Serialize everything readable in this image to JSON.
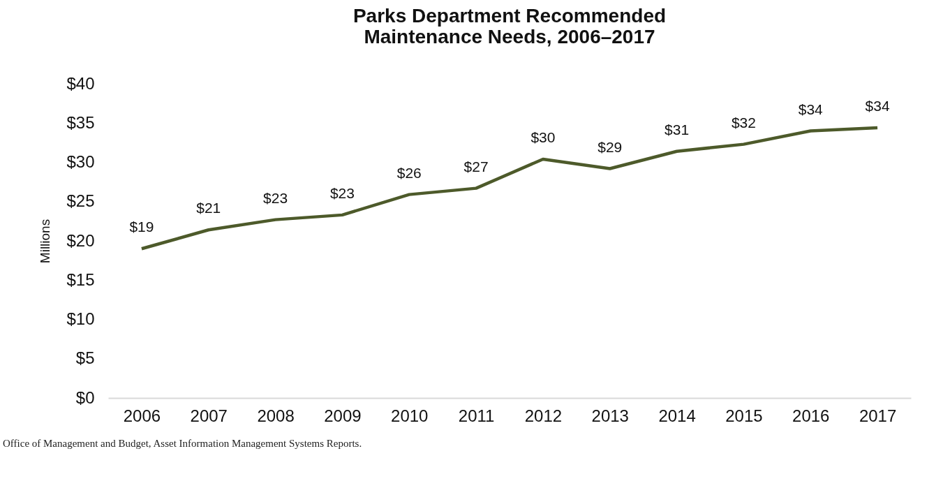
{
  "chart_data": {
    "type": "line",
    "title": "Parks Department Recommended\nMaintenance Needs, 2006–2017",
    "ylabel": "Millions",
    "categories": [
      "2006",
      "2007",
      "2008",
      "2009",
      "2010",
      "2011",
      "2012",
      "2013",
      "2014",
      "2015",
      "2016",
      "2017"
    ],
    "series": [
      {
        "color": "#4d5a2a",
        "values": [
          19.0,
          21.4,
          22.7,
          23.3,
          25.9,
          26.7,
          30.4,
          29.2,
          31.4,
          32.3,
          34.0,
          34.4
        ],
        "value_labels": [
          "$19",
          "$21",
          "$23",
          "$23",
          "$26",
          "$27",
          "$30",
          "$29",
          "$31",
          "$32",
          "$34",
          "$34"
        ]
      }
    ],
    "ylim": [
      0,
      40
    ],
    "yticks": [
      {
        "value": 0,
        "label": "$0"
      },
      {
        "value": 5,
        "label": "$5"
      },
      {
        "value": 10,
        "label": "$10"
      },
      {
        "value": 15,
        "label": "$15"
      },
      {
        "value": 20,
        "label": "$20"
      },
      {
        "value": 25,
        "label": "$25"
      },
      {
        "value": 30,
        "label": "$30"
      },
      {
        "value": 35,
        "label": "$35"
      },
      {
        "value": 40,
        "label": "$40"
      }
    ],
    "grid": false,
    "marker": "none",
    "line_style": "solid",
    "annotations": [
      "Office of Management and Budget, Asset Information Management Systems Reports."
    ]
  }
}
